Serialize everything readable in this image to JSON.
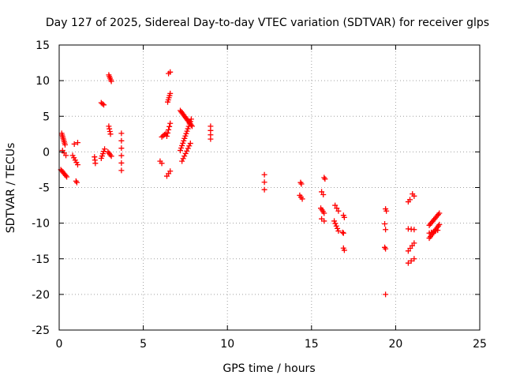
{
  "chart_data": {
    "type": "scatter",
    "title": "Day 127 of 2025, Sidereal Day-to-day VTEC variation (SDTVAR) for receiver glps",
    "xlabel": "GPS time / hours",
    "ylabel": "SDTVAR / TECUs",
    "xlim": [
      0,
      25
    ],
    "ylim": [
      -25,
      15
    ],
    "x_ticks": [
      0,
      5,
      10,
      15,
      20,
      25
    ],
    "y_ticks": [
      -25,
      -20,
      -15,
      -10,
      -5,
      0,
      5,
      10,
      15
    ],
    "grid": true,
    "marker": "plus",
    "color": "#ff0000",
    "segments": [
      {
        "x0": 0.15,
        "y0": 2.6,
        "x1": 0.35,
        "y1": 1.0,
        "n": 8
      },
      {
        "x0": 0.2,
        "y0": 0.2,
        "x1": 0.4,
        "y1": -0.5,
        "n": 3
      },
      {
        "x0": 0.1,
        "y0": -2.5,
        "x1": 0.45,
        "y1": -3.5,
        "n": 7
      },
      {
        "x0": 0.8,
        "y0": -0.5,
        "x1": 1.1,
        "y1": -1.8,
        "n": 5
      },
      {
        "x0": 0.9,
        "y0": 1.1,
        "x1": 1.1,
        "y1": 1.3,
        "n": 2
      },
      {
        "x0": 1.0,
        "y0": -4.1,
        "x1": 1.05,
        "y1": -4.3,
        "n": 2
      },
      {
        "x0": 2.1,
        "y0": -0.7,
        "x1": 2.15,
        "y1": -1.6,
        "n": 3
      },
      {
        "x0": 2.5,
        "y0": 6.9,
        "x1": 2.65,
        "y1": 6.6,
        "n": 3
      },
      {
        "x0": 2.5,
        "y0": -0.9,
        "x1": 2.7,
        "y1": 0.4,
        "n": 5
      },
      {
        "x0": 2.95,
        "y0": 10.8,
        "x1": 3.1,
        "y1": 9.9,
        "n": 5
      },
      {
        "x0": 2.95,
        "y0": 3.6,
        "x1": 3.05,
        "y1": 2.5,
        "n": 4
      },
      {
        "x0": 2.9,
        "y0": 0.0,
        "x1": 3.1,
        "y1": -0.6,
        "n": 4
      },
      {
        "x0": 3.7,
        "y0": 2.6,
        "x1": 3.7,
        "y1": -2.6,
        "n": 6
      },
      {
        "x0": 6.0,
        "y0": -1.3,
        "x1": 6.1,
        "y1": -1.6,
        "n": 2
      },
      {
        "x0": 6.1,
        "y0": 2.1,
        "x1": 6.35,
        "y1": 2.6,
        "n": 4
      },
      {
        "x0": 6.4,
        "y0": -3.4,
        "x1": 6.6,
        "y1": -2.7,
        "n": 3
      },
      {
        "x0": 6.4,
        "y0": 2.2,
        "x1": 6.6,
        "y1": 4.0,
        "n": 5
      },
      {
        "x0": 6.45,
        "y0": 7.0,
        "x1": 6.6,
        "y1": 8.2,
        "n": 5
      },
      {
        "x0": 6.5,
        "y0": 11.0,
        "x1": 6.6,
        "y1": 11.2,
        "n": 2
      },
      {
        "x0": 7.2,
        "y0": 5.8,
        "x1": 7.9,
        "y1": 3.6,
        "n": 14
      },
      {
        "x0": 7.2,
        "y0": 0.2,
        "x1": 7.85,
        "y1": 4.6,
        "n": 14
      },
      {
        "x0": 7.3,
        "y0": -1.3,
        "x1": 7.8,
        "y1": 1.2,
        "n": 8
      },
      {
        "x0": 9.0,
        "y0": 3.6,
        "x1": 9.0,
        "y1": 1.8,
        "n": 4
      },
      {
        "x0": 12.2,
        "y0": -3.2,
        "x1": 12.2,
        "y1": -5.3,
        "n": 3
      },
      {
        "x0": 14.35,
        "y0": -4.3,
        "x1": 14.4,
        "y1": -4.5,
        "n": 2
      },
      {
        "x0": 14.3,
        "y0": -6.1,
        "x1": 14.45,
        "y1": -6.6,
        "n": 3
      },
      {
        "x0": 15.6,
        "y0": -5.6,
        "x1": 15.7,
        "y1": -6.0,
        "n": 2
      },
      {
        "x0": 15.75,
        "y0": -3.6,
        "x1": 15.8,
        "y1": -3.8,
        "n": 2
      },
      {
        "x0": 15.55,
        "y0": -7.9,
        "x1": 15.75,
        "y1": -8.6,
        "n": 4
      },
      {
        "x0": 15.6,
        "y0": -9.4,
        "x1": 15.75,
        "y1": -9.7,
        "n": 2
      },
      {
        "x0": 16.4,
        "y0": -7.5,
        "x1": 16.6,
        "y1": -8.3,
        "n": 3
      },
      {
        "x0": 16.35,
        "y0": -9.7,
        "x1": 16.6,
        "y1": -11.1,
        "n": 5
      },
      {
        "x0": 16.9,
        "y0": -8.9,
        "x1": 16.95,
        "y1": -9.2,
        "n": 2
      },
      {
        "x0": 16.85,
        "y0": -11.3,
        "x1": 16.9,
        "y1": -11.4,
        "n": 2
      },
      {
        "x0": 16.9,
        "y0": -13.5,
        "x1": 16.95,
        "y1": -13.8,
        "n": 2
      },
      {
        "x0": 19.4,
        "y0": -8.0,
        "x1": 19.45,
        "y1": -8.3,
        "n": 2
      },
      {
        "x0": 19.35,
        "y0": -10.1,
        "x1": 19.4,
        "y1": -10.9,
        "n": 2
      },
      {
        "x0": 19.35,
        "y0": -13.4,
        "x1": 19.4,
        "y1": -13.6,
        "n": 2
      },
      {
        "x0": 19.4,
        "y0": -20.0,
        "x1": 19.4,
        "y1": -20.1,
        "n": 1
      },
      {
        "x0": 20.75,
        "y0": -7.0,
        "x1": 20.85,
        "y1": -6.7,
        "n": 2
      },
      {
        "x0": 21.0,
        "y0": -5.9,
        "x1": 21.1,
        "y1": -6.2,
        "n": 2
      },
      {
        "x0": 20.75,
        "y0": -10.8,
        "x1": 21.1,
        "y1": -10.9,
        "n": 3
      },
      {
        "x0": 20.75,
        "y0": -13.9,
        "x1": 21.1,
        "y1": -12.8,
        "n": 4
      },
      {
        "x0": 20.75,
        "y0": -15.6,
        "x1": 21.1,
        "y1": -15.0,
        "n": 3
      },
      {
        "x0": 22.0,
        "y0": -10.3,
        "x1": 22.6,
        "y1": -8.6,
        "n": 10
      },
      {
        "x0": 22.0,
        "y0": -12.1,
        "x1": 22.6,
        "y1": -10.2,
        "n": 10
      },
      {
        "x0": 22.0,
        "y0": -11.4,
        "x1": 22.5,
        "y1": -11.0,
        "n": 5
      }
    ]
  }
}
